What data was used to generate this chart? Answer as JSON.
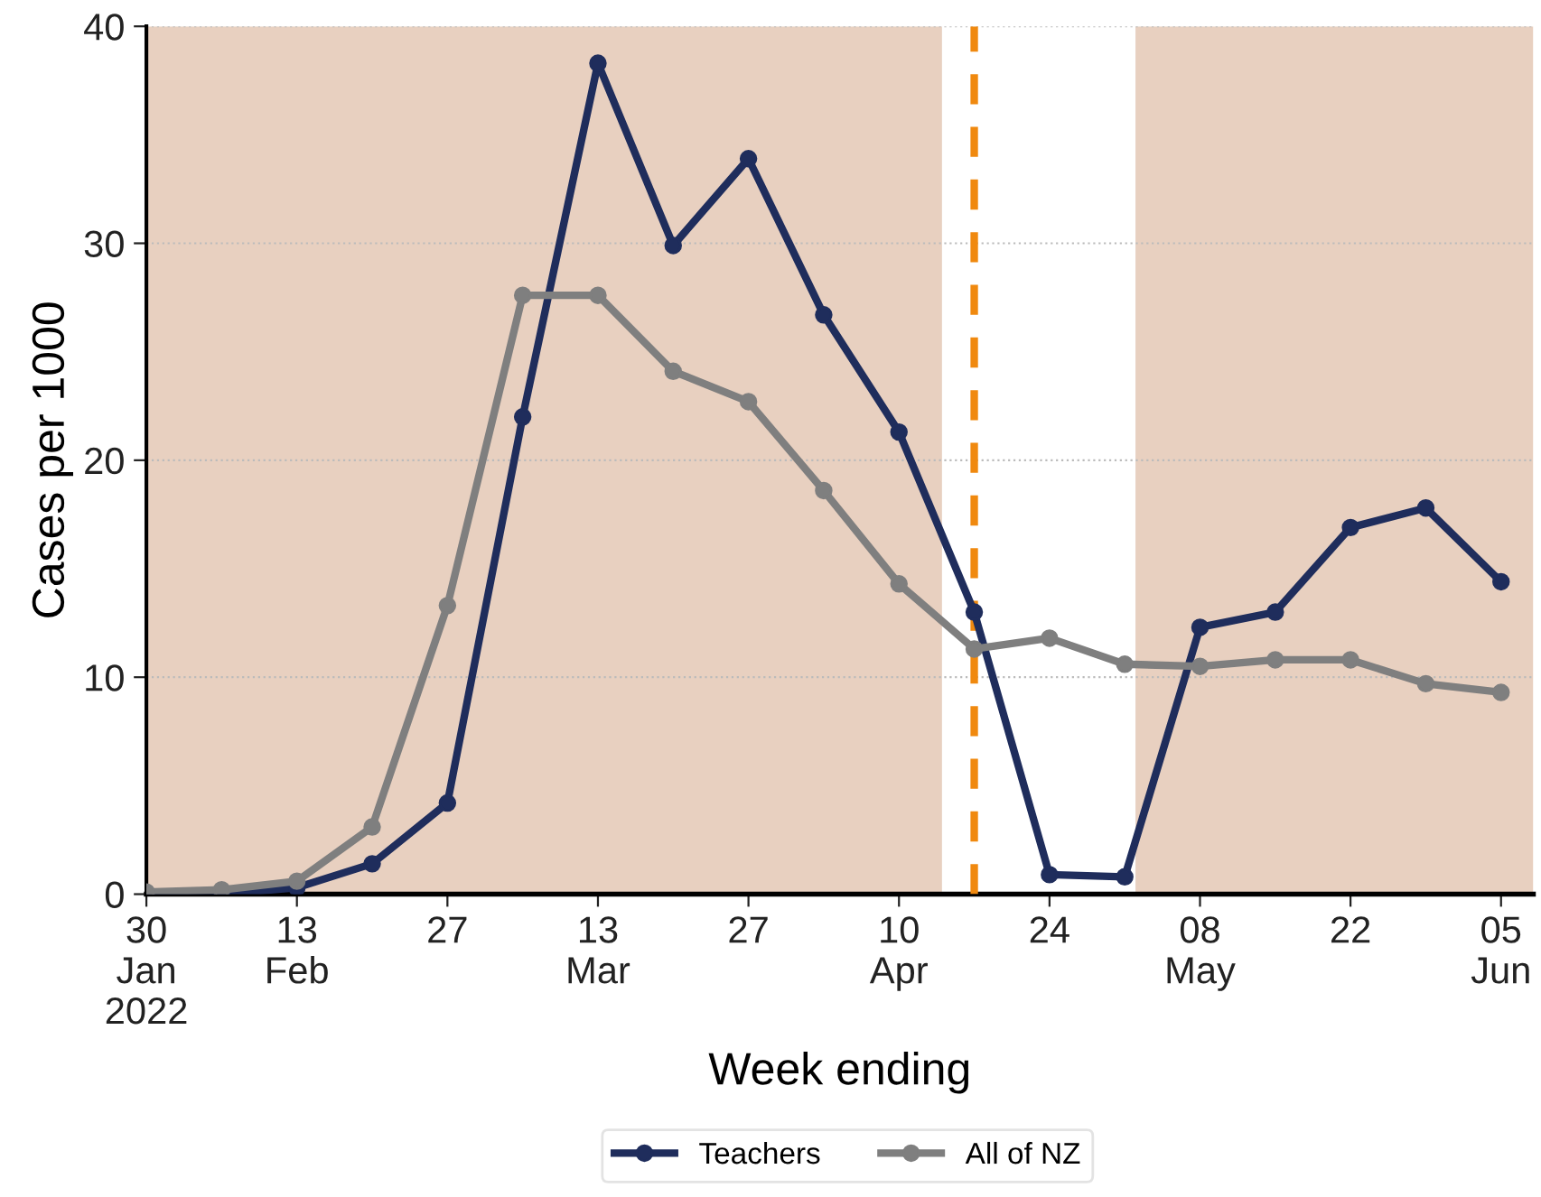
{
  "chart_data": {
    "type": "line",
    "xlabel": "Week ending",
    "ylabel": "Cases per 1000",
    "x": [
      "2022-01-30",
      "2022-02-06",
      "2022-02-13",
      "2022-02-20",
      "2022-02-27",
      "2022-03-06",
      "2022-03-13",
      "2022-03-20",
      "2022-03-27",
      "2022-04-03",
      "2022-04-10",
      "2022-04-17",
      "2022-04-24",
      "2022-05-01",
      "2022-05-08",
      "2022-05-15",
      "2022-05-22",
      "2022-05-29",
      "2022-06-05"
    ],
    "series": [
      {
        "name": "Teachers",
        "color": "#1f2d5c",
        "values": [
          0.0,
          0.0,
          0.3,
          1.4,
          4.2,
          22.0,
          38.3,
          29.9,
          33.9,
          26.7,
          21.3,
          13.0,
          0.9,
          0.8,
          12.3,
          13.0,
          16.9,
          17.8,
          14.4
        ]
      },
      {
        "name": "All of NZ",
        "color": "#7f7f7f",
        "values": [
          0.1,
          0.2,
          0.6,
          3.1,
          13.3,
          27.6,
          27.6,
          24.1,
          22.7,
          18.6,
          14.3,
          11.3,
          11.8,
          10.6,
          10.5,
          10.8,
          10.8,
          9.7,
          9.3
        ]
      }
    ],
    "xlim": [
      "2022-01-30",
      "2022-06-08"
    ],
    "ylim": [
      0,
      40
    ],
    "yticks": [
      0,
      10,
      20,
      30,
      40
    ],
    "xticks": [
      {
        "value": "2022-01-30",
        "label": "30\nJan\n2022"
      },
      {
        "value": "2022-02-13",
        "label": "13\nFeb"
      },
      {
        "value": "2022-02-27",
        "label": "27"
      },
      {
        "value": "2022-03-13",
        "label": "13\nMar"
      },
      {
        "value": "2022-03-27",
        "label": "27"
      },
      {
        "value": "2022-04-10",
        "label": "10\nApr"
      },
      {
        "value": "2022-04-24",
        "label": "24"
      },
      {
        "value": "2022-05-08",
        "label": "08\nMay"
      },
      {
        "value": "2022-05-22",
        "label": "22"
      },
      {
        "value": "2022-06-05",
        "label": "05\nJun"
      }
    ],
    "bands": [
      {
        "axis": "x",
        "from": "2022-01-30",
        "to": "2022-04-14",
        "color": "#e8d0c0"
      },
      {
        "axis": "x",
        "from": "2022-05-02",
        "to": "2022-06-08",
        "color": "#e8d0c0"
      }
    ],
    "ref_lines": [
      {
        "axis": "x",
        "value": "2022-04-17",
        "color": "#f0890f",
        "line_style": "dashed"
      }
    ],
    "grid": "y",
    "legend": "bottom",
    "marker": "circle",
    "line_style": "solid"
  }
}
